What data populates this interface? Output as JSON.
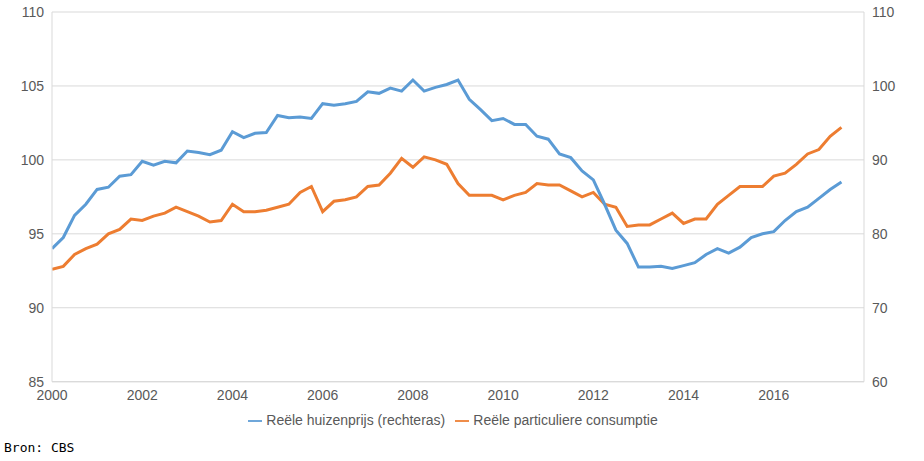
{
  "chart_data": {
    "type": "line",
    "x": [
      2000,
      2000.25,
      2000.5,
      2000.75,
      2001,
      2001.25,
      2001.5,
      2001.75,
      2002,
      2002.25,
      2002.5,
      2002.75,
      2003,
      2003.25,
      2003.5,
      2003.75,
      2004,
      2004.25,
      2004.5,
      2004.75,
      2005,
      2005.25,
      2005.5,
      2005.75,
      2006,
      2006.25,
      2006.5,
      2006.75,
      2007,
      2007.25,
      2007.5,
      2007.75,
      2008,
      2008.25,
      2008.5,
      2008.75,
      2009,
      2009.25,
      2009.5,
      2009.75,
      2010,
      2010.25,
      2010.5,
      2010.75,
      2011,
      2011.25,
      2011.5,
      2011.75,
      2012,
      2012.25,
      2012.5,
      2012.75,
      2013,
      2013.25,
      2013.5,
      2013.75,
      2014,
      2014.25,
      2014.5,
      2014.75,
      2015,
      2015.25,
      2015.5,
      2015.75,
      2016,
      2016.25,
      2016.5,
      2016.75,
      2017,
      2017.25,
      2017.5
    ],
    "xlim": [
      2000,
      2018
    ],
    "xticks": [
      2000,
      2002,
      2004,
      2006,
      2008,
      2010,
      2012,
      2014,
      2016
    ],
    "ylim": [
      85,
      110
    ],
    "yticks": [
      85,
      90,
      95,
      100,
      105,
      110
    ],
    "y2lim": [
      60,
      110
    ],
    "y2ticks": [
      60,
      70,
      80,
      90,
      100,
      110
    ],
    "grid": true,
    "legend": "bottom",
    "series": [
      {
        "name": "Reële particuliere consumptie",
        "color": "#ED7D31",
        "values": [
          92.6,
          92.8,
          93.6,
          94.0,
          94.3,
          95.0,
          95.3,
          96.0,
          95.9,
          96.2,
          96.4,
          96.8,
          96.5,
          96.2,
          95.8,
          95.9,
          97.0,
          96.5,
          96.5,
          96.6,
          96.8,
          97.0,
          97.8,
          98.2,
          96.5,
          97.2,
          97.3,
          97.5,
          98.2,
          98.3,
          99.1,
          100.1,
          99.5,
          100.2,
          100.0,
          99.7,
          98.4,
          97.6,
          97.6,
          97.6,
          97.3,
          97.6,
          97.8,
          98.4,
          98.3,
          98.3,
          97.9,
          97.5,
          97.8,
          97.0,
          96.8,
          95.5,
          95.6,
          95.6,
          96.0,
          96.4,
          95.7,
          96.0,
          96.0,
          97.0,
          97.6,
          98.2,
          98.2,
          98.2,
          98.9,
          99.1,
          99.7,
          100.4,
          100.7,
          101.6,
          102.2
        ]
      },
      {
        "name": "Reële huizenprijs (rechteras)",
        "color": "#5B9BD5",
        "axis": "y2",
        "values": [
          78.0,
          79.5,
          82.5,
          84.0,
          86.0,
          86.3,
          87.8,
          88.0,
          89.8,
          89.3,
          89.8,
          89.6,
          91.2,
          91.0,
          90.7,
          91.3,
          93.8,
          93.0,
          93.6,
          93.7,
          96.0,
          95.7,
          95.8,
          95.6,
          97.6,
          97.4,
          97.6,
          97.9,
          99.2,
          99.0,
          99.7,
          99.3,
          100.8,
          99.3,
          99.8,
          100.2,
          100.8,
          98.2,
          96.8,
          95.3,
          95.6,
          94.8,
          94.8,
          93.2,
          92.8,
          90.8,
          90.3,
          88.5,
          87.3,
          84.0,
          80.5,
          78.7,
          75.5,
          75.5,
          75.6,
          75.3,
          75.7,
          76.1,
          77.2,
          78.0,
          77.4,
          78.2,
          79.5,
          80.0,
          80.3,
          81.8,
          83.0,
          83.6,
          84.8,
          86.0,
          87.0
        ]
      }
    ],
    "source": "Bron: CBS"
  }
}
